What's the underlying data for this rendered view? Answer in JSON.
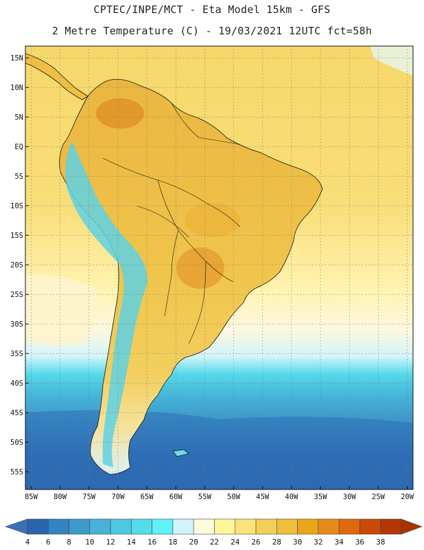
{
  "header": {
    "line1": "CPTEC/INPE/MCT -  Eta Model 15km - GFS",
    "line2": "2 Metre Temperature (C) - 19/03/2021 12UTC fct=58h"
  },
  "map": {
    "extent": {
      "lon": [
        -86,
        -19
      ],
      "lat": [
        -58,
        17
      ]
    },
    "lat_ticks": [
      {
        "v": 15,
        "label": "15N"
      },
      {
        "v": 10,
        "label": "10N"
      },
      {
        "v": 5,
        "label": "5N"
      },
      {
        "v": 0,
        "label": "EQ"
      },
      {
        "v": -5,
        "label": "5S"
      },
      {
        "v": -10,
        "label": "10S"
      },
      {
        "v": -15,
        "label": "15S"
      },
      {
        "v": -20,
        "label": "20S"
      },
      {
        "v": -25,
        "label": "25S"
      },
      {
        "v": -30,
        "label": "30S"
      },
      {
        "v": -35,
        "label": "35S"
      },
      {
        "v": -40,
        "label": "40S"
      },
      {
        "v": -45,
        "label": "45S"
      },
      {
        "v": -50,
        "label": "50S"
      },
      {
        "v": -55,
        "label": "55S"
      }
    ],
    "lon_ticks": [
      {
        "v": -85,
        "label": "85W"
      },
      {
        "v": -80,
        "label": "80W"
      },
      {
        "v": -75,
        "label": "75W"
      },
      {
        "v": -70,
        "label": "70W"
      },
      {
        "v": -65,
        "label": "65W"
      },
      {
        "v": -60,
        "label": "60W"
      },
      {
        "v": -55,
        "label": "55W"
      },
      {
        "v": -50,
        "label": "50W"
      },
      {
        "v": -45,
        "label": "45W"
      },
      {
        "v": -40,
        "label": "40W"
      },
      {
        "v": -35,
        "label": "35W"
      },
      {
        "v": -30,
        "label": "30W"
      },
      {
        "v": -25,
        "label": "25W"
      },
      {
        "v": -20,
        "label": "20W"
      }
    ]
  },
  "colorbar": {
    "labels": [
      "4",
      "6",
      "8",
      "10",
      "12",
      "14",
      "16",
      "18",
      "20",
      "22",
      "24",
      "26",
      "28",
      "30",
      "32",
      "34",
      "36",
      "38"
    ],
    "colors": [
      "#2a64ad",
      "#3483c2",
      "#3d9ac9",
      "#46b2d6",
      "#4ec7e0",
      "#55dcea",
      "#5ff2f7",
      "#d2f4fb",
      "#fefade",
      "#fff59a",
      "#fbe37a",
      "#f3cf5a",
      "#eebf3a",
      "#eba51a",
      "#e68a1c",
      "#df6a0e",
      "#c94a07",
      "#b33605"
    ],
    "end_low": "#3d6fb8",
    "end_high": "#a83400"
  },
  "colors": {
    "ocean_south_deep": "#2f6fb5",
    "ocean_cyan": "#52e0ee",
    "ocean_warm": "#f7d766",
    "land_base": "#edc24a"
  }
}
